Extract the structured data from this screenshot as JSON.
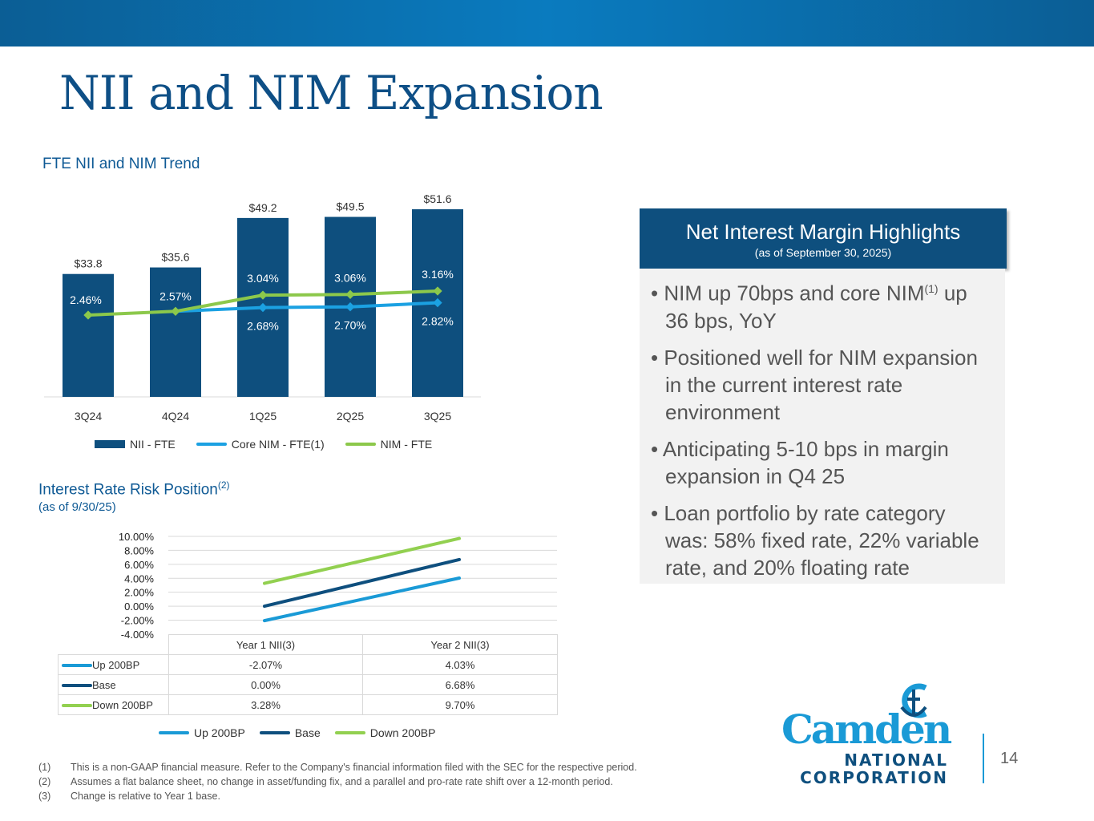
{
  "header": {
    "title": "NII and NIM Expansion",
    "page_number": "14"
  },
  "colors": {
    "nii_bar": "#0e4f7e",
    "core_nim": "#1ba1e2",
    "nim": "#8cc84b",
    "up200": "#1a9ad6",
    "base": "#0e4f7e",
    "down200": "#92d050"
  },
  "chart_data": [
    {
      "type": "bar",
      "title": "FTE NII and NIM Trend",
      "categories": [
        "3Q24",
        "4Q24",
        "1Q25",
        "2Q25",
        "3Q25"
      ],
      "series": [
        {
          "name": "NII - FTE",
          "type": "bar",
          "values": [
            33.8,
            35.6,
            49.2,
            49.5,
            51.6
          ],
          "labels": [
            "$33.8",
            "$35.6",
            "$49.2",
            "$49.5",
            "$51.6"
          ]
        },
        {
          "name": "Core NIM - FTE(1)",
          "type": "line",
          "values": [
            null,
            null,
            2.68,
            2.7,
            2.82
          ],
          "labels": [
            "",
            "",
            "2.68%",
            "2.70%",
            "2.82%"
          ]
        },
        {
          "name": "NIM - FTE",
          "type": "line",
          "values": [
            2.46,
            2.57,
            3.04,
            3.06,
            3.16
          ],
          "labels": [
            "2.46%",
            "2.57%",
            "3.04%",
            "3.06%",
            "3.16%"
          ]
        }
      ],
      "legend": "bottom"
    },
    {
      "type": "line",
      "title": "Interest Rate Risk Position",
      "title_sup": "(2)",
      "subtitle": "(as of 9/30/25)",
      "categories": [
        "Year 1 NII(3)",
        "Year 2 NII(3)"
      ],
      "yticks": [
        "10.00%",
        "8.00%",
        "6.00%",
        "4.00%",
        "2.00%",
        "0.00%",
        "-2.00%",
        "-4.00%"
      ],
      "ylim": [
        -4,
        10
      ],
      "series": [
        {
          "name": "Up 200BP",
          "values": [
            -2.07,
            4.03
          ],
          "labels": [
            "-2.07%",
            "4.03%"
          ]
        },
        {
          "name": "Base",
          "values": [
            0.0,
            6.68
          ],
          "labels": [
            "0.00%",
            "6.68%"
          ]
        },
        {
          "name": "Down 200BP",
          "values": [
            3.28,
            9.7
          ],
          "labels": [
            "3.28%",
            "9.70%"
          ]
        }
      ],
      "legend": "bottom",
      "grid": true
    }
  ],
  "panel": {
    "title": "Net Interest Margin Highlights",
    "subtitle": "(as of September 30, 2025)",
    "bullets": [
      {
        "pre": "NIM up 70bps and core NIM",
        "sup": "(1)",
        "post": " up 36 bps, YoY"
      },
      {
        "pre": "Positioned well for NIM expansion in the current interest rate environment",
        "sup": "",
        "post": ""
      },
      {
        "pre": "Anticipating 5-10 bps in margin expansion in Q4 25",
        "sup": "",
        "post": ""
      },
      {
        "pre": "Loan portfolio by rate category was: 58% fixed rate, 22% variable rate, and 20% floating rate",
        "sup": "",
        "post": ""
      }
    ]
  },
  "footnotes": [
    {
      "num": "(1)",
      "text": "This is a non-GAAP financial measure. Refer to the Company's financial information filed with the SEC for the respective period."
    },
    {
      "num": "(2)",
      "text": "Assumes a flat balance sheet, no change in asset/funding fix, and a parallel and pro-rate rate shift over a 12-month period."
    },
    {
      "num": "(3)",
      "text": "Change is relative to Year 1 base."
    }
  ],
  "logo": {
    "line1": "Camden",
    "line2": "NATIONAL",
    "line3": "CORPORATION"
  }
}
